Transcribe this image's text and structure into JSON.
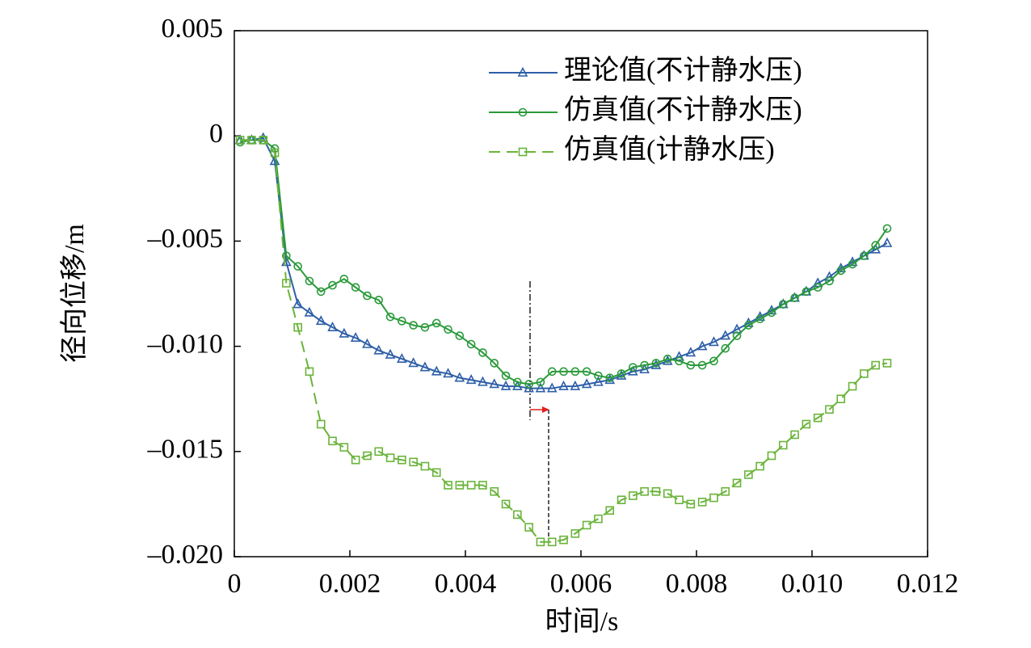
{
  "chart_data": {
    "type": "line",
    "xlabel": "时间/s",
    "ylabel": "径向位移/m",
    "xlim": [
      0,
      0.012
    ],
    "ylim": [
      -0.02,
      0.005
    ],
    "xticks": [
      0,
      0.002,
      0.004,
      0.006,
      0.008,
      {
        "value": 0.01,
        "label": "0.010"
      },
      0.012
    ],
    "yticks": [
      {
        "value": -0.02,
        "label": "–0.020"
      },
      {
        "value": -0.015,
        "label": "–0.015"
      },
      {
        "value": -0.01,
        "label": "–0.010"
      },
      {
        "value": -0.005,
        "label": "–0.005"
      },
      0,
      0.005
    ],
    "legend": "upper right",
    "x": [
      0.0001,
      0.0003,
      0.0005,
      0.0007,
      0.0009,
      0.0011,
      0.0013,
      0.0015,
      0.0017,
      0.0019,
      0.0021,
      0.0023,
      0.0025,
      0.0027,
      0.0029,
      0.0031,
      0.0033,
      0.0035,
      0.0037,
      0.0039,
      0.0041,
      0.0043,
      0.0045,
      0.0047,
      0.0049,
      0.0051,
      0.0053,
      0.0055,
      0.0057,
      0.0059,
      0.0061,
      0.0063,
      0.0065,
      0.0067,
      0.0069,
      0.0071,
      0.0073,
      0.0075,
      0.0077,
      0.0079,
      0.0081,
      0.0083,
      0.0085,
      0.0087,
      0.0089,
      0.0091,
      0.0093,
      0.0095,
      0.0097,
      0.0099,
      0.0101,
      0.0103,
      0.0105,
      0.0107,
      0.0109,
      0.0111,
      0.0113
    ],
    "series": [
      {
        "name": "理论值(不计静水压)",
        "color": "#2e5fa8",
        "marker": "triangle",
        "dash": false,
        "values": [
          -0.0002,
          -0.0002,
          -0.0001,
          -0.0012,
          -0.006,
          -0.008,
          -0.0084,
          -0.0088,
          -0.0091,
          -0.0094,
          -0.0096,
          -0.0099,
          -0.0102,
          -0.0104,
          -0.0106,
          -0.0108,
          -0.011,
          -0.0112,
          -0.0113,
          -0.0115,
          -0.0116,
          -0.0117,
          -0.0118,
          -0.0119,
          -0.0119,
          -0.012,
          -0.012,
          -0.012,
          -0.0119,
          -0.0119,
          -0.0118,
          -0.0117,
          -0.0116,
          -0.0114,
          -0.0112,
          -0.0111,
          -0.0109,
          -0.0107,
          -0.0105,
          -0.0103,
          -0.01,
          -0.0098,
          -0.0095,
          -0.0092,
          -0.0089,
          -0.0086,
          -0.0083,
          -0.008,
          -0.0077,
          -0.0074,
          -0.007,
          -0.0067,
          -0.0063,
          -0.006,
          -0.0057,
          -0.0054,
          -0.0051
        ]
      },
      {
        "name": "仿真值(不计静水压)",
        "color": "#2a9a3a",
        "marker": "circle",
        "dash": false,
        "values": [
          -0.0003,
          -0.0002,
          -0.0002,
          -0.0006,
          -0.0057,
          -0.0062,
          -0.0069,
          -0.0074,
          -0.0071,
          -0.0068,
          -0.0072,
          -0.0076,
          -0.0078,
          -0.0086,
          -0.0088,
          -0.009,
          -0.0091,
          -0.0089,
          -0.0092,
          -0.0095,
          -0.0099,
          -0.0103,
          -0.0108,
          -0.0114,
          -0.0117,
          -0.0118,
          -0.0117,
          -0.0112,
          -0.0112,
          -0.0112,
          -0.0112,
          -0.0114,
          -0.0115,
          -0.0113,
          -0.011,
          -0.0109,
          -0.0108,
          -0.0106,
          -0.0107,
          -0.0109,
          -0.0109,
          -0.0107,
          -0.0101,
          -0.0095,
          -0.009,
          -0.0087,
          -0.0084,
          -0.008,
          -0.0077,
          -0.0074,
          -0.0072,
          -0.0069,
          -0.0064,
          -0.0061,
          -0.0057,
          -0.0052,
          -0.0044
        ]
      },
      {
        "name": "仿真值(计静水压)",
        "color": "#6ab43a",
        "marker": "square",
        "dash": true,
        "values": [
          -0.0002,
          -0.0002,
          -0.0002,
          -0.0008,
          -0.007,
          -0.0091,
          -0.0112,
          -0.0137,
          -0.0145,
          -0.0148,
          -0.0154,
          -0.0152,
          -0.015,
          -0.0153,
          -0.0154,
          -0.0155,
          -0.0157,
          -0.016,
          -0.0166,
          -0.0166,
          -0.0166,
          -0.0166,
          -0.0169,
          -0.0175,
          -0.018,
          -0.0186,
          -0.0193,
          -0.0193,
          -0.0192,
          -0.0189,
          -0.0185,
          -0.0182,
          -0.0178,
          -0.0173,
          -0.0171,
          -0.0169,
          -0.0169,
          -0.017,
          -0.0173,
          -0.0175,
          -0.0174,
          -0.0172,
          -0.0169,
          -0.0165,
          -0.0161,
          -0.0157,
          -0.0152,
          -0.0147,
          -0.0142,
          -0.0137,
          -0.0134,
          -0.013,
          -0.0125,
          -0.0119,
          -0.0113,
          -0.0109,
          -0.0108
        ]
      }
    ]
  }
}
